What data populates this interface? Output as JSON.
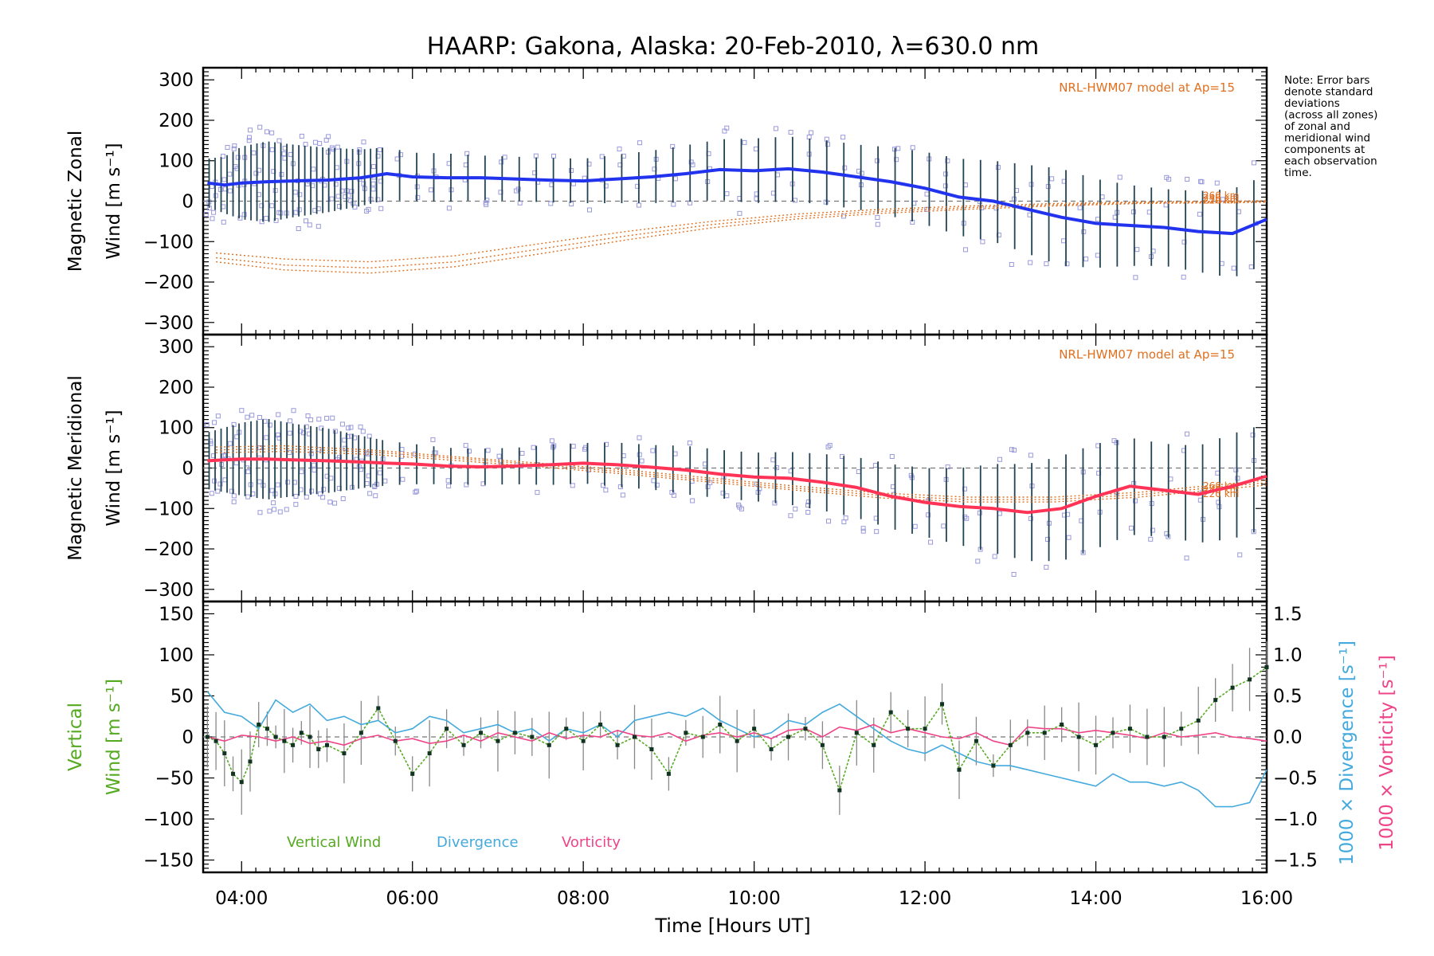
{
  "title": "HAARP: Gakona,  Alaska: 20-Feb-2010, λ=630.0 nm",
  "note_lines": [
    "Note: Error bars",
    "denote standard",
    "deviations",
    "(across all zones)",
    "of zonal and",
    "meridional wind",
    "components at",
    "each observation",
    "time."
  ],
  "colors": {
    "zonal_mean": "#2233ee",
    "meridional_mean": "#ff3355",
    "model": "#e07020",
    "vertical": "#55aa22",
    "divergence": "#44aadd",
    "vorticity": "#ee4488",
    "samples": "#9999dd",
    "error_bar": "#224455"
  },
  "chart_data": [
    {
      "type": "line",
      "panel": "zonal",
      "ylabel_line1": "Magnetic Zonal",
      "ylabel_line2": "Wind [m s⁻¹]",
      "ylim": [
        -330,
        330
      ],
      "yticks": [
        -300,
        -200,
        -100,
        0,
        100,
        200,
        300
      ],
      "model_label": "NRL-HWM07 model at Ap=15",
      "model_series": [
        {
          "name": "260 km",
          "x": [
            3.7,
            4.5,
            5.5,
            6.5,
            7.5,
            8.5,
            9.5,
            10.5,
            11.5,
            12.5,
            13.5,
            14.5,
            15.5,
            16.0
          ],
          "y": [
            -128,
            -143,
            -150,
            -135,
            -105,
            -75,
            -50,
            -32,
            -20,
            -12,
            -6,
            -2,
            0,
            1
          ]
        },
        {
          "name": "240 km",
          "x": [
            3.7,
            4.5,
            5.5,
            6.5,
            7.5,
            8.5,
            9.5,
            10.5,
            11.5,
            12.5,
            13.5,
            14.5,
            15.5,
            16.0
          ],
          "y": [
            -140,
            -158,
            -165,
            -150,
            -118,
            -86,
            -58,
            -38,
            -25,
            -16,
            -9,
            -4,
            -2,
            -1
          ]
        },
        {
          "name": "220 km",
          "x": [
            3.7,
            4.5,
            5.5,
            6.5,
            7.5,
            8.5,
            9.5,
            10.5,
            11.5,
            12.5,
            13.5,
            14.5,
            15.5,
            16.0
          ],
          "y": [
            -150,
            -170,
            -178,
            -162,
            -130,
            -96,
            -66,
            -44,
            -30,
            -20,
            -12,
            -6,
            -4,
            -3
          ]
        }
      ],
      "mean_series": {
        "name": "Zonal mean",
        "x": [
          3.6,
          3.8,
          4.0,
          4.3,
          4.6,
          5.0,
          5.4,
          5.7,
          6.0,
          6.4,
          6.8,
          7.2,
          7.6,
          8.0,
          8.4,
          8.8,
          9.2,
          9.6,
          10.0,
          10.4,
          10.8,
          11.2,
          11.6,
          12.0,
          12.4,
          12.8,
          13.2,
          13.6,
          14.0,
          14.4,
          14.8,
          15.2,
          15.6,
          16.0
        ],
        "y": [
          45,
          40,
          45,
          48,
          50,
          52,
          58,
          68,
          60,
          58,
          58,
          55,
          52,
          50,
          55,
          60,
          68,
          78,
          75,
          80,
          72,
          60,
          48,
          32,
          10,
          0,
          -20,
          -40,
          -55,
          -60,
          -65,
          -75,
          -80,
          -45
        ]
      },
      "band_halfwidth": [
        60,
        70,
        90,
        100,
        90,
        80,
        70,
        65,
        60,
        60,
        55,
        55,
        55,
        55,
        60,
        65,
        70,
        75,
        80,
        80,
        80,
        80,
        85,
        90,
        95,
        100,
        110,
        120,
        110,
        100,
        95,
        100,
        110,
        110
      ]
    },
    {
      "type": "line",
      "panel": "meridional",
      "ylabel_line1": "Magnetic Meridional",
      "ylabel_line2": "Wind [m s⁻¹]",
      "ylim": [
        -330,
        330
      ],
      "yticks": [
        -300,
        -200,
        -100,
        0,
        100,
        200,
        300
      ],
      "model_label": "NRL-HWM07 model at Ap=15",
      "model_series": [
        {
          "name": "260 km",
          "x": [
            3.7,
            4.5,
            5.5,
            6.5,
            7.5,
            8.5,
            9.5,
            10.5,
            11.5,
            12.5,
            13.5,
            14.5,
            15.5,
            16.0
          ],
          "y": [
            52,
            55,
            45,
            28,
            12,
            -5,
            -25,
            -45,
            -62,
            -72,
            -72,
            -60,
            -40,
            -30
          ]
        },
        {
          "name": "240 km",
          "x": [
            3.7,
            4.5,
            5.5,
            6.5,
            7.5,
            8.5,
            9.5,
            10.5,
            11.5,
            12.5,
            13.5,
            14.5,
            15.5,
            16.0
          ],
          "y": [
            45,
            48,
            40,
            24,
            8,
            -10,
            -30,
            -50,
            -68,
            -78,
            -78,
            -66,
            -46,
            -36
          ]
        },
        {
          "name": "220 km",
          "x": [
            3.7,
            4.5,
            5.5,
            6.5,
            7.5,
            8.5,
            9.5,
            10.5,
            11.5,
            12.5,
            13.5,
            14.5,
            15.5,
            16.0
          ],
          "y": [
            38,
            41,
            34,
            19,
            3,
            -15,
            -35,
            -55,
            -74,
            -84,
            -84,
            -72,
            -52,
            -42
          ]
        }
      ],
      "mean_series": {
        "name": "Meridional mean",
        "x": [
          3.6,
          3.8,
          4.0,
          4.3,
          4.6,
          5.0,
          5.4,
          5.7,
          6.0,
          6.4,
          6.8,
          7.2,
          7.6,
          8.0,
          8.4,
          8.8,
          9.2,
          9.6,
          10.0,
          10.4,
          10.8,
          11.2,
          11.6,
          12.0,
          12.4,
          12.8,
          13.2,
          13.6,
          14.0,
          14.4,
          14.8,
          15.2,
          15.6,
          16.0
        ],
        "y": [
          18,
          20,
          22,
          22,
          20,
          18,
          15,
          12,
          10,
          5,
          3,
          5,
          8,
          12,
          8,
          2,
          -5,
          -15,
          -22,
          -25,
          -35,
          -48,
          -70,
          -85,
          -95,
          -100,
          -110,
          -100,
          -70,
          -45,
          -55,
          -65,
          -45,
          -20
        ]
      },
      "band_halfwidth": [
        70,
        80,
        90,
        100,
        90,
        80,
        65,
        55,
        50,
        45,
        45,
        45,
        50,
        50,
        55,
        55,
        60,
        60,
        60,
        65,
        70,
        75,
        80,
        85,
        95,
        110,
        120,
        130,
        130,
        120,
        115,
        120,
        130,
        130
      ]
    },
    {
      "type": "line",
      "panel": "vertical",
      "ylabel_line1": "Vertical",
      "ylabel_line2": "Wind [m s⁻¹]",
      "right_ylabel_div": "1000 × Divergence [s⁻¹]",
      "right_ylabel_vort": "1000 × Vorticity [s⁻¹]",
      "ylim": [
        -165,
        165
      ],
      "yticks": [
        -150,
        -100,
        -50,
        0,
        50,
        100,
        150
      ],
      "y2lim": [
        -1.65,
        1.65
      ],
      "y2ticks": [
        "−1.5",
        "−1.0",
        "−0.5",
        "0.0",
        "0.5",
        "1.0",
        "1.5"
      ],
      "y2tick_values": [
        -1.5,
        -1.0,
        -0.5,
        0.0,
        0.5,
        1.0,
        1.5
      ],
      "legend": [
        "Vertical Wind",
        "Divergence",
        "Vorticity"
      ],
      "series": [
        {
          "name": "Vertical Wind",
          "x": [
            3.6,
            3.7,
            3.8,
            3.9,
            4.0,
            4.1,
            4.2,
            4.3,
            4.4,
            4.5,
            4.6,
            4.7,
            4.8,
            4.9,
            5.0,
            5.2,
            5.4,
            5.6,
            5.8,
            6.0,
            6.2,
            6.4,
            6.6,
            6.8,
            7.0,
            7.2,
            7.4,
            7.6,
            7.8,
            8.0,
            8.2,
            8.4,
            8.6,
            8.8,
            9.0,
            9.2,
            9.4,
            9.6,
            9.8,
            10.0,
            10.2,
            10.4,
            10.6,
            10.8,
            11.0,
            11.2,
            11.4,
            11.6,
            11.8,
            12.0,
            12.2,
            12.4,
            12.6,
            12.8,
            13.0,
            13.2,
            13.4,
            13.6,
            13.8,
            14.0,
            14.2,
            14.4,
            14.6,
            14.8,
            15.0,
            15.2,
            15.4,
            15.6,
            15.8,
            16.0
          ],
          "y": [
            0,
            -5,
            -20,
            -45,
            -55,
            -30,
            15,
            10,
            0,
            -5,
            -10,
            5,
            0,
            -15,
            -10,
            -20,
            5,
            35,
            -5,
            -45,
            -20,
            10,
            -10,
            5,
            -5,
            5,
            0,
            -10,
            10,
            -5,
            15,
            -10,
            0,
            -15,
            -45,
            5,
            0,
            15,
            -5,
            10,
            -15,
            0,
            10,
            -10,
            -65,
            5,
            -10,
            30,
            10,
            10,
            40,
            -40,
            -5,
            -35,
            -10,
            5,
            5,
            15,
            0,
            -10,
            5,
            10,
            0,
            0,
            10,
            20,
            45,
            60,
            70,
            85
          ]
        },
        {
          "name": "Divergence",
          "x": [
            3.6,
            3.8,
            4.0,
            4.2,
            4.4,
            4.6,
            4.8,
            5.0,
            5.2,
            5.4,
            5.6,
            5.8,
            6.0,
            6.2,
            6.4,
            6.6,
            6.8,
            7.0,
            7.2,
            7.4,
            7.6,
            7.8,
            8.0,
            8.2,
            8.4,
            8.6,
            8.8,
            9.0,
            9.2,
            9.4,
            9.6,
            9.8,
            10.0,
            10.2,
            10.4,
            10.6,
            10.8,
            11.0,
            11.2,
            11.4,
            11.6,
            11.8,
            12.0,
            12.2,
            12.4,
            12.6,
            12.8,
            13.0,
            13.2,
            13.4,
            13.6,
            13.8,
            14.0,
            14.2,
            14.4,
            14.6,
            14.8,
            15.0,
            15.2,
            15.4,
            15.6,
            15.8,
            16.0
          ],
          "y": [
            0.55,
            0.3,
            0.25,
            0.1,
            0.45,
            0.3,
            0.4,
            0.2,
            0.25,
            0.15,
            0.2,
            0.05,
            0.1,
            0.25,
            0.2,
            0.05,
            0.1,
            0.15,
            0.05,
            0.1,
            -0.05,
            0.1,
            0.05,
            0.15,
            0.0,
            0.2,
            0.25,
            0.3,
            0.25,
            0.35,
            0.2,
            0.1,
            0.0,
            0.05,
            0.2,
            0.15,
            0.3,
            0.4,
            0.25,
            0.1,
            -0.05,
            -0.15,
            -0.2,
            -0.1,
            -0.2,
            -0.3,
            -0.35,
            -0.35,
            -0.4,
            -0.45,
            -0.5,
            -0.55,
            -0.6,
            -0.45,
            -0.55,
            -0.55,
            -0.6,
            -0.55,
            -0.65,
            -0.85,
            -0.85,
            -0.8,
            -0.4
          ]
        },
        {
          "name": "Vorticity",
          "x": [
            3.6,
            3.8,
            4.0,
            4.2,
            4.4,
            4.6,
            4.8,
            5.0,
            5.2,
            5.4,
            5.6,
            5.8,
            6.0,
            6.2,
            6.4,
            6.6,
            6.8,
            7.0,
            7.2,
            7.4,
            7.6,
            7.8,
            8.0,
            8.2,
            8.4,
            8.6,
            8.8,
            9.0,
            9.2,
            9.4,
            9.6,
            9.8,
            10.0,
            10.2,
            10.4,
            10.6,
            10.8,
            11.0,
            11.2,
            11.4,
            11.6,
            11.8,
            12.0,
            12.2,
            12.4,
            12.6,
            12.8,
            13.0,
            13.2,
            13.4,
            13.6,
            13.8,
            14.0,
            14.2,
            14.4,
            14.6,
            14.8,
            15.0,
            15.2,
            15.4,
            15.6,
            15.8,
            16.0
          ],
          "y": [
            0.0,
            -0.05,
            0.02,
            0.0,
            -0.05,
            0.0,
            -0.08,
            -0.05,
            -0.1,
            -0.02,
            0.02,
            -0.05,
            -0.02,
            -0.08,
            -0.05,
            0.02,
            -0.05,
            0.05,
            0.0,
            -0.05,
            0.05,
            -0.02,
            0.02,
            0.0,
            0.08,
            0.02,
            0.0,
            0.05,
            -0.05,
            0.02,
            0.05,
            0.0,
            0.05,
            -0.02,
            0.08,
            0.1,
            0.0,
            0.12,
            0.08,
            0.15,
            0.05,
            0.1,
            0.05,
            0.0,
            -0.02,
            0.05,
            -0.05,
            -0.1,
            0.12,
            0.1,
            0.1,
            0.05,
            0.08,
            0.05,
            0.02,
            -0.02,
            0.05,
            0.0,
            0.02,
            0.05,
            0.0,
            -0.02,
            -0.05
          ]
        }
      ]
    }
  ],
  "x_axis": {
    "label": "Time [Hours UT]",
    "xlim": [
      3.55,
      16.0
    ],
    "tick_values": [
      4,
      6,
      8,
      10,
      12,
      14,
      16
    ],
    "tick_labels": [
      "04:00",
      "06:00",
      "08:00",
      "10:00",
      "12:00",
      "14:00",
      "16:00"
    ]
  }
}
